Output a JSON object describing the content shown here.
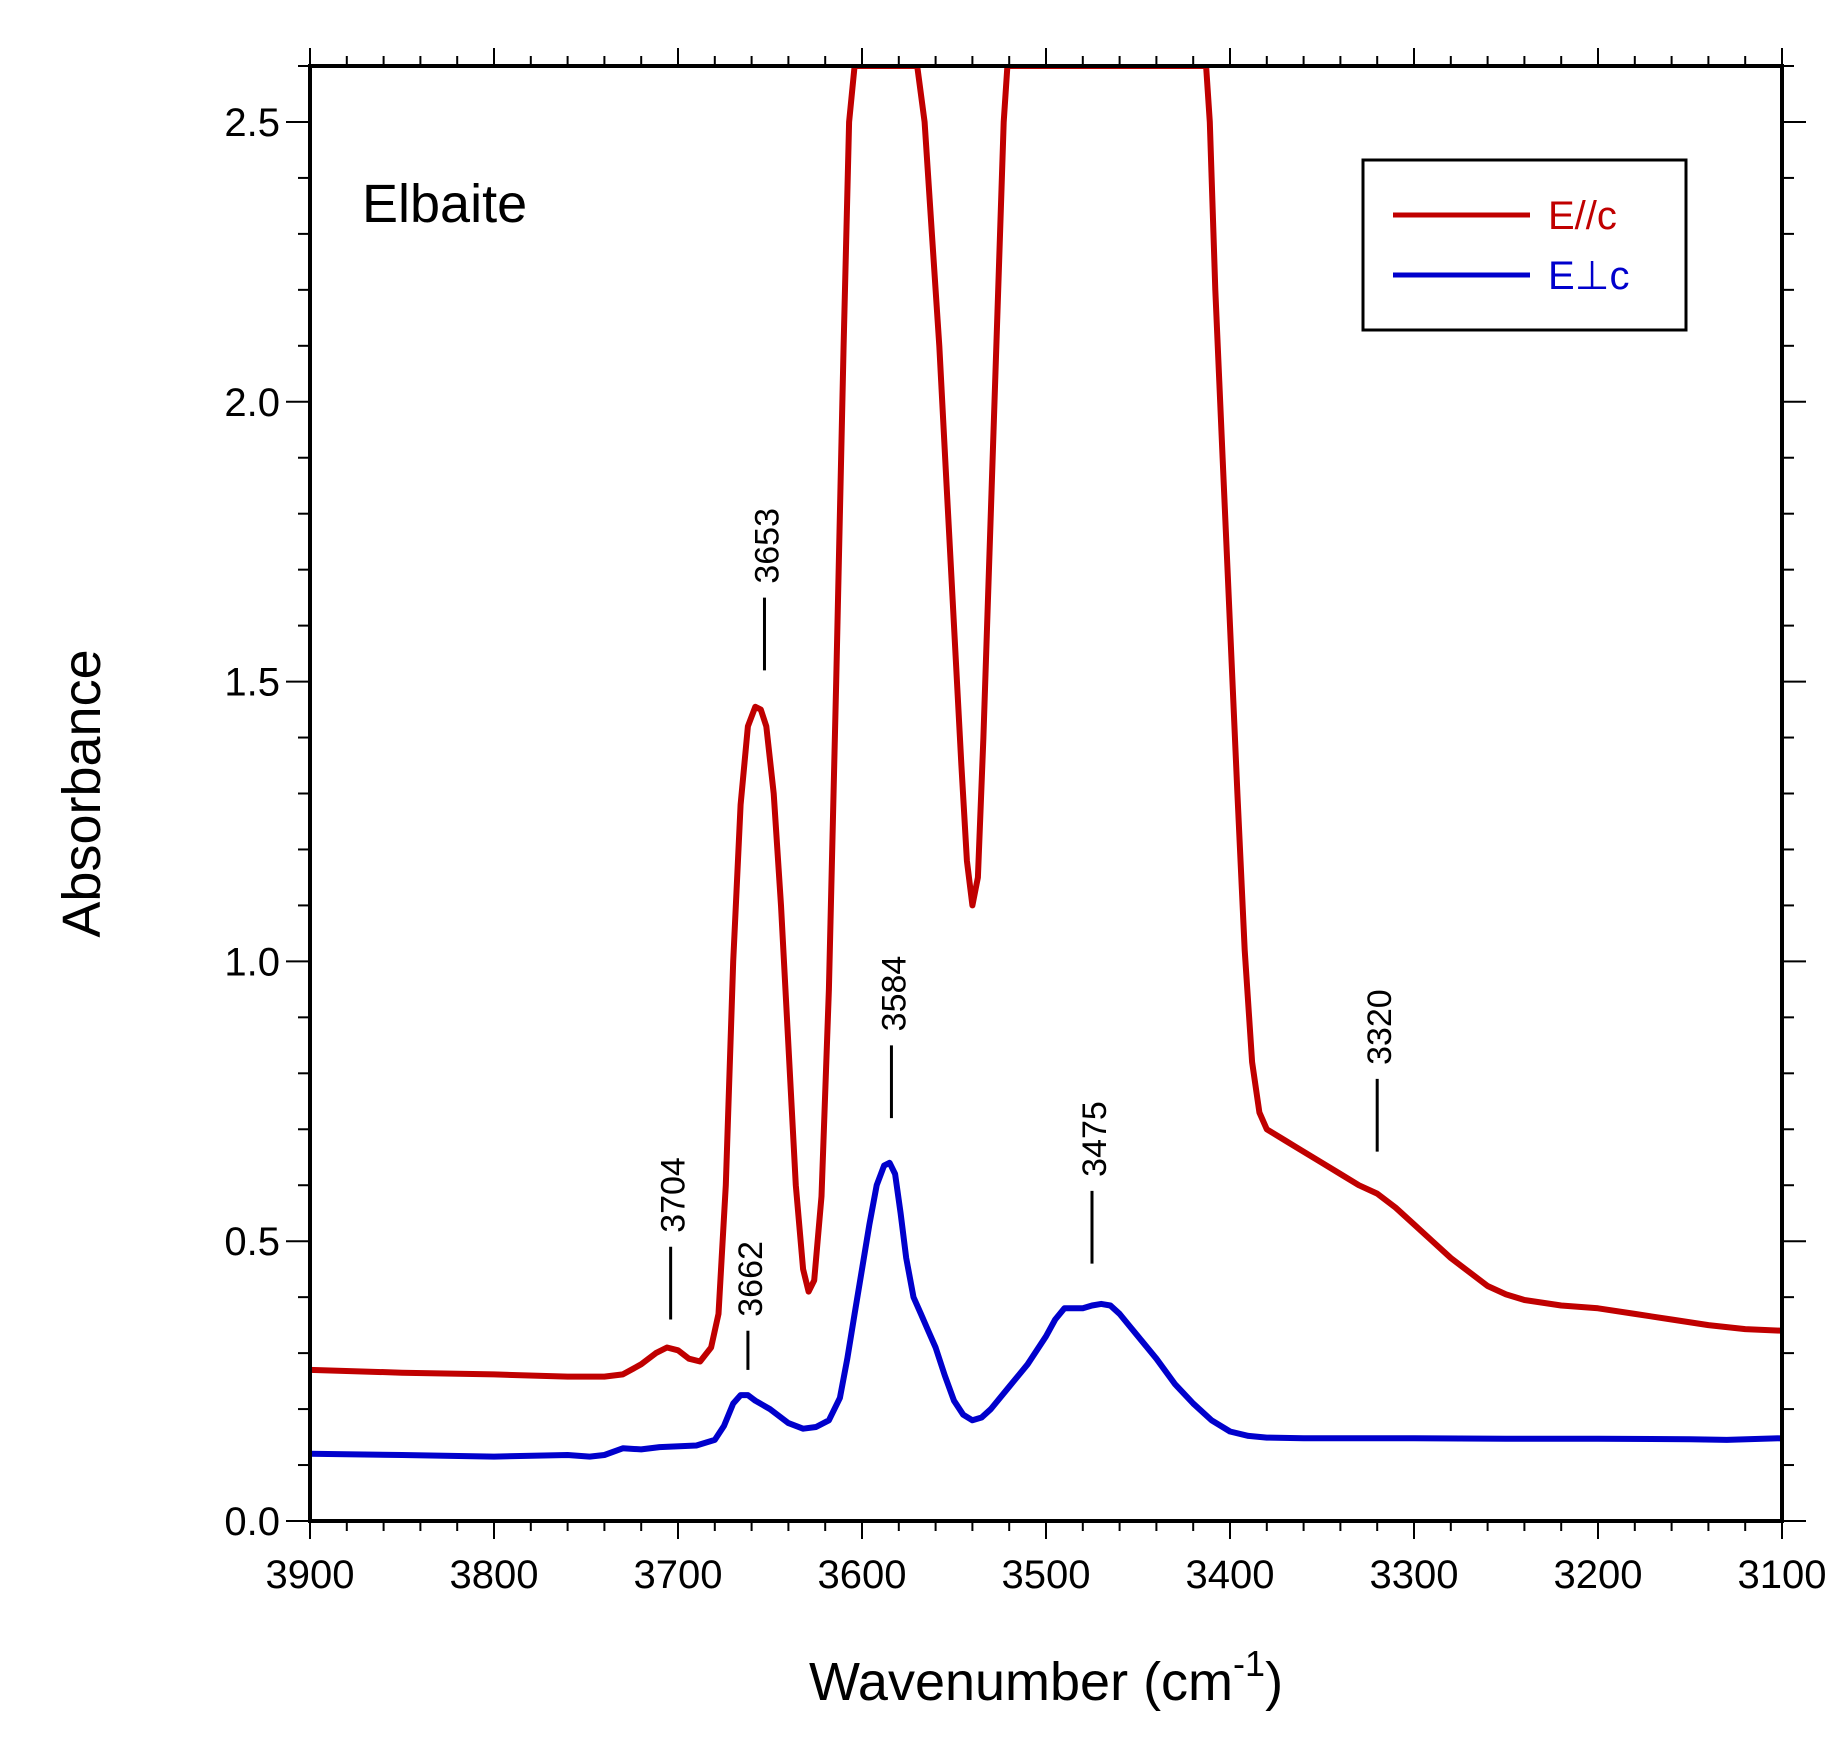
{
  "chart_data": {
    "type": "line",
    "title": "Elbaite",
    "xlabel_main": "Wavenumber (cm",
    "xlabel_sup": "-1",
    "xlabel_tail": ")",
    "ylabel": "Absorbance",
    "xlim": [
      3900,
      3100
    ],
    "ylim": [
      0,
      2.6
    ],
    "x_ticks": [
      "3900",
      "3800",
      "3700",
      "3600",
      "3500",
      "3400",
      "3300",
      "3200",
      "3100"
    ],
    "y_ticks": [
      "0.0",
      "0.5",
      "1.0",
      "1.5",
      "2.0",
      "2.5"
    ],
    "legend": {
      "position": "top-right"
    },
    "series": [
      {
        "name": "E//c",
        "color": "#c00000",
        "x": [
          3900,
          3850,
          3800,
          3760,
          3740,
          3730,
          3720,
          3712,
          3706,
          3700,
          3694,
          3688,
          3682,
          3678,
          3674,
          3670,
          3666,
          3662,
          3658,
          3655,
          3652,
          3648,
          3644,
          3640,
          3636,
          3632,
          3629,
          3626,
          3622,
          3618,
          3614,
          3610,
          3607,
          3604,
          3603,
          3570,
          3566,
          3562,
          3558,
          3554,
          3550,
          3546,
          3543,
          3540,
          3537,
          3534,
          3530,
          3526,
          3523,
          3521,
          3413,
          3411,
          3408,
          3404,
          3400,
          3396,
          3392,
          3388,
          3384,
          3380,
          3370,
          3360,
          3350,
          3340,
          3330,
          3320,
          3310,
          3300,
          3290,
          3280,
          3270,
          3260,
          3250,
          3240,
          3220,
          3200,
          3180,
          3160,
          3140,
          3120,
          3100
        ],
        "y": [
          0.27,
          0.265,
          0.262,
          0.258,
          0.258,
          0.262,
          0.28,
          0.3,
          0.31,
          0.305,
          0.29,
          0.285,
          0.31,
          0.37,
          0.6,
          1.0,
          1.28,
          1.42,
          1.455,
          1.45,
          1.42,
          1.3,
          1.1,
          0.85,
          0.6,
          0.45,
          0.41,
          0.43,
          0.58,
          0.95,
          1.5,
          2.1,
          2.5,
          2.6,
          2.6,
          2.6,
          2.5,
          2.3,
          2.1,
          1.85,
          1.6,
          1.35,
          1.18,
          1.1,
          1.15,
          1.4,
          1.8,
          2.2,
          2.5,
          2.6,
          2.6,
          2.5,
          2.2,
          1.9,
          1.6,
          1.3,
          1.02,
          0.82,
          0.73,
          0.7,
          0.68,
          0.66,
          0.64,
          0.62,
          0.6,
          0.585,
          0.56,
          0.53,
          0.5,
          0.47,
          0.445,
          0.42,
          0.405,
          0.395,
          0.385,
          0.38,
          0.37,
          0.36,
          0.35,
          0.343,
          0.34
        ]
      },
      {
        "name": "E⊥c",
        "color": "#0000cc",
        "x": [
          3900,
          3850,
          3800,
          3760,
          3748,
          3740,
          3730,
          3720,
          3710,
          3690,
          3680,
          3675,
          3670,
          3666,
          3662,
          3658,
          3650,
          3640,
          3632,
          3625,
          3618,
          3612,
          3608,
          3604,
          3600,
          3596,
          3592,
          3588,
          3585,
          3582,
          3579,
          3576,
          3572,
          3568,
          3564,
          3560,
          3555,
          3550,
          3545,
          3540,
          3535,
          3530,
          3520,
          3510,
          3500,
          3495,
          3490,
          3485,
          3480,
          3475,
          3470,
          3465,
          3460,
          3455,
          3450,
          3440,
          3430,
          3420,
          3410,
          3400,
          3390,
          3380,
          3360,
          3340,
          3300,
          3250,
          3200,
          3150,
          3130,
          3100
        ],
        "y": [
          0.12,
          0.118,
          0.115,
          0.118,
          0.115,
          0.118,
          0.13,
          0.128,
          0.132,
          0.135,
          0.145,
          0.17,
          0.21,
          0.225,
          0.225,
          0.215,
          0.2,
          0.175,
          0.165,
          0.168,
          0.18,
          0.22,
          0.29,
          0.37,
          0.45,
          0.53,
          0.6,
          0.635,
          0.64,
          0.62,
          0.55,
          0.47,
          0.4,
          0.37,
          0.34,
          0.31,
          0.26,
          0.215,
          0.19,
          0.18,
          0.185,
          0.2,
          0.24,
          0.28,
          0.33,
          0.36,
          0.38,
          0.38,
          0.38,
          0.385,
          0.388,
          0.385,
          0.37,
          0.35,
          0.33,
          0.29,
          0.245,
          0.21,
          0.18,
          0.16,
          0.152,
          0.149,
          0.148,
          0.148,
          0.148,
          0.147,
          0.147,
          0.146,
          0.145,
          0.148
        ]
      }
    ],
    "annotations": [
      {
        "label": "3704",
        "x": 3704,
        "y_top": 0.49,
        "y_bot": 0.36
      },
      {
        "label": "3653",
        "x": 3653,
        "y_top": 1.65,
        "y_bot": 1.52
      },
      {
        "label": "3662",
        "x": 3662,
        "y_top": 0.34,
        "y_bot": 0.27
      },
      {
        "label": "3584",
        "x": 3584,
        "y_top": 0.85,
        "y_bot": 0.72
      },
      {
        "label": "3475",
        "x": 3475,
        "y_top": 0.59,
        "y_bot": 0.46
      },
      {
        "label": "3320",
        "x": 3320,
        "y_top": 0.79,
        "y_bot": 0.66
      }
    ]
  }
}
